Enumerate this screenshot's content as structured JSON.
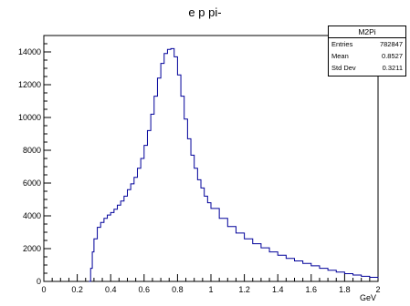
{
  "chart_data": {
    "type": "line",
    "title": "e p pi-",
    "xlabel": "GeV",
    "ylabel": "",
    "xlim": [
      0,
      2
    ],
    "ylim": [
      0,
      15000
    ],
    "grid": false,
    "x_ticks": [
      "0",
      "0.2",
      "0.4",
      "0.6",
      "0.8",
      "1",
      "1.2",
      "1.4",
      "1.6",
      "1.8",
      "2"
    ],
    "y_ticks": [
      "0",
      "2000",
      "4000",
      "6000",
      "8000",
      "10000",
      "12000",
      "14000"
    ],
    "series": [
      {
        "color": "#00009a",
        "x": [
          0.27,
          0.28,
          0.29,
          0.3,
          0.32,
          0.34,
          0.36,
          0.38,
          0.4,
          0.42,
          0.44,
          0.46,
          0.48,
          0.5,
          0.52,
          0.54,
          0.56,
          0.58,
          0.6,
          0.62,
          0.64,
          0.66,
          0.68,
          0.7,
          0.72,
          0.74,
          0.76,
          0.78,
          0.8,
          0.82,
          0.84,
          0.86,
          0.88,
          0.9,
          0.92,
          0.94,
          0.96,
          0.98,
          1.0,
          1.05,
          1.1,
          1.15,
          1.2,
          1.25,
          1.3,
          1.35,
          1.4,
          1.45,
          1.5,
          1.55,
          1.6,
          1.65,
          1.7,
          1.75,
          1.8,
          1.85,
          1.9,
          1.95,
          2.0
        ],
        "y": [
          0,
          800,
          1800,
          2600,
          3300,
          3600,
          3850,
          4050,
          4200,
          4400,
          4650,
          4900,
          5200,
          5600,
          5950,
          6350,
          6900,
          7500,
          8300,
          9200,
          10200,
          11300,
          12400,
          13300,
          13900,
          14150,
          14200,
          13700,
          12600,
          11300,
          9900,
          8700,
          7700,
          6900,
          6200,
          5700,
          5200,
          4800,
          4450,
          3850,
          3350,
          2950,
          2600,
          2300,
          2050,
          1800,
          1600,
          1400,
          1250,
          1100,
          950,
          800,
          680,
          570,
          470,
          390,
          310,
          250,
          200
        ]
      }
    ]
  },
  "statbox": {
    "name": "M2Pi",
    "rows": [
      {
        "label": "Entries",
        "value": "782847"
      },
      {
        "label": "Mean",
        "value": "0.8527"
      },
      {
        "label": "Std Dev",
        "value": "0.3211"
      }
    ]
  }
}
